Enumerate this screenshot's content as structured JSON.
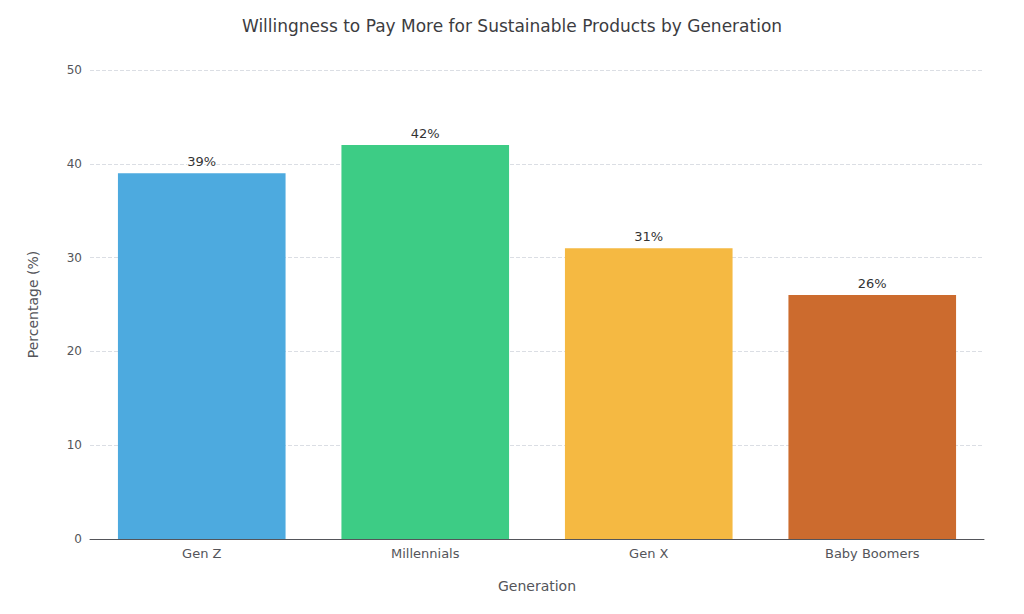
{
  "chart_data": {
    "type": "bar",
    "title": "Willingness to Pay More for Sustainable Products by Generation",
    "xlabel": "Generation",
    "ylabel": "Percentage (%)",
    "categories": [
      "Gen Z",
      "Millennials",
      "Gen X",
      "Baby Boomers"
    ],
    "values": [
      39,
      42,
      31,
      26
    ],
    "value_labels": [
      "39%",
      "42%",
      "31%",
      "26%"
    ],
    "data_labels": true,
    "colors": [
      "#4DAADF",
      "#3DCC85",
      "#F5B942",
      "#CC6B2E"
    ],
    "ylim": [
      0,
      50
    ],
    "yticks": [
      0,
      10,
      20,
      30,
      40,
      50
    ],
    "grid": true
  }
}
